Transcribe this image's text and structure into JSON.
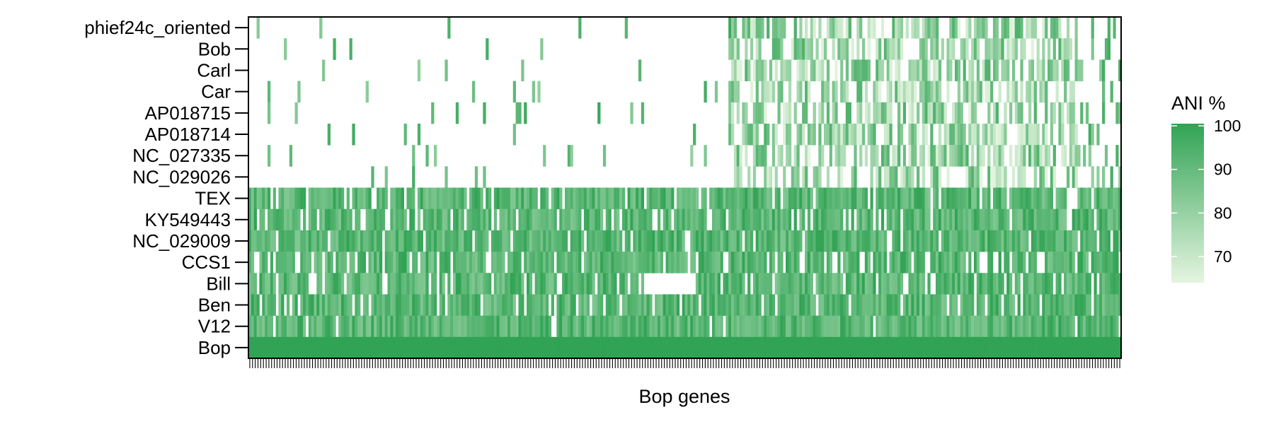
{
  "chart_data": {
    "type": "heatmap",
    "title": "",
    "xlabel": "Bop genes",
    "ylabel": "",
    "rows": [
      "phief24c_oriented",
      "Bob",
      "Carl",
      "Car",
      "AP018715",
      "AP018714",
      "NC_027335",
      "NC_029026",
      "TEX",
      "KY549443",
      "NC_029009",
      "CCS1",
      "Bill",
      "Ben",
      "V12",
      "Bop"
    ],
    "n_genes": 320,
    "value_range": [
      64,
      100
    ],
    "color_low": "#e5f5e0",
    "color_high": "#31a354",
    "legend": {
      "title": "ANI %",
      "ticks": [
        100,
        90,
        80,
        70
      ],
      "position": "right"
    },
    "cell_values_note": "Gene-level ANI values (per row × gene) are too dense to transcribe individually; rows 1–8 are sparse with many low-similarity hits in the right half, rows 9–15 are mostly 90–100, row Bop is 100 throughout."
  },
  "colors": {
    "axis": "#000000",
    "background": "#ffffff"
  }
}
